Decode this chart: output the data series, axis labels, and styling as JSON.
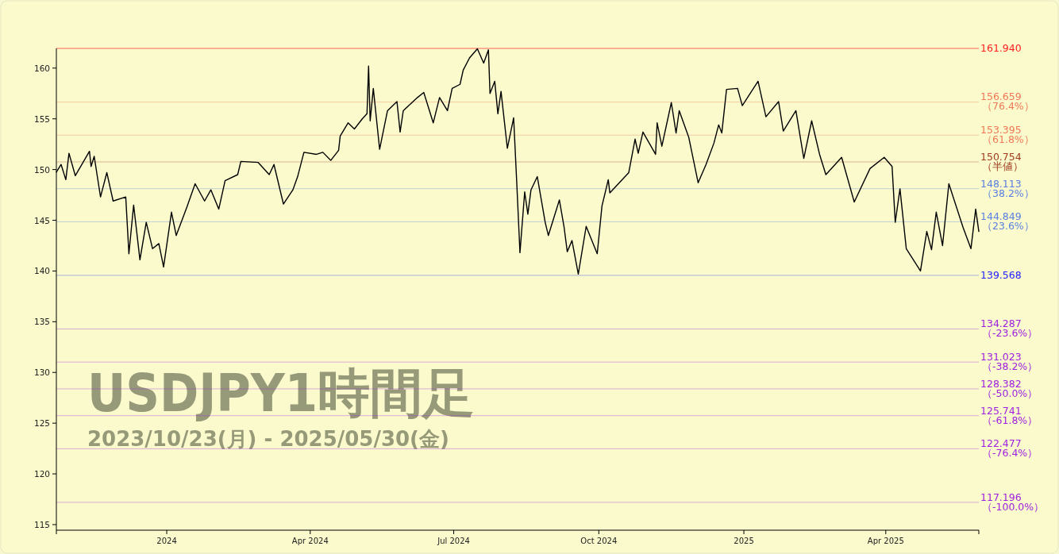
{
  "chart_data": {
    "type": "line",
    "title": "USDJPY1時間足",
    "subtitle": "2023/10/23(月) - 2025/05/30(金)",
    "x": [
      "2023-10-23",
      "2023-10-26",
      "2023-10-29",
      "2023-10-31",
      "2023-11-04",
      "2023-11-13",
      "2023-11-14",
      "2023-11-16",
      "2023-11-20",
      "2023-11-24",
      "2023-11-28",
      "2023-12-06",
      "2023-12-08",
      "2023-12-11",
      "2023-12-15",
      "2023-12-19",
      "2023-12-23",
      "2023-12-27",
      "2023-12-30",
      "2024-01-04",
      "2024-01-07",
      "2024-01-14",
      "2024-01-19",
      "2024-01-25",
      "2024-01-29",
      "2024-02-03",
      "2024-02-07",
      "2024-02-15",
      "2024-02-17",
      "2024-02-28",
      "2024-03-06",
      "2024-03-09",
      "2024-03-15",
      "2024-03-21",
      "2024-03-24",
      "2024-03-28",
      "2024-04-05",
      "2024-04-09",
      "2024-04-14",
      "2024-04-19",
      "2024-04-20",
      "2024-04-25",
      "2024-04-29",
      "2024-05-04",
      "2024-05-07",
      "2024-05-08",
      "2024-05-09",
      "2024-05-11",
      "2024-05-15",
      "2024-05-20",
      "2024-05-26",
      "2024-05-28",
      "2024-05-30",
      "2024-06-08",
      "2024-06-12",
      "2024-06-18",
      "2024-06-22",
      "2024-06-27",
      "2024-06-30",
      "2024-07-05",
      "2024-07-07",
      "2024-07-11",
      "2024-07-16",
      "2024-07-20",
      "2024-07-23",
      "2024-07-24",
      "2024-07-27",
      "2024-07-29",
      "2024-07-31",
      "2024-08-04",
      "2024-08-08",
      "2024-08-10",
      "2024-08-12",
      "2024-08-15",
      "2024-08-17",
      "2024-08-19",
      "2024-08-23",
      "2024-08-28",
      "2024-08-30",
      "2024-09-06",
      "2024-09-09",
      "2024-09-11",
      "2024-09-14",
      "2024-09-18",
      "2024-09-23",
      "2024-09-30",
      "2024-10-03",
      "2024-10-07",
      "2024-10-08",
      "2024-10-20",
      "2024-10-24",
      "2024-10-26",
      "2024-10-29",
      "2024-11-06",
      "2024-11-07",
      "2024-11-10",
      "2024-11-16",
      "2024-11-19",
      "2024-11-21",
      "2024-11-27",
      "2024-12-03",
      "2024-12-08",
      "2024-12-13",
      "2024-12-16",
      "2024-12-18",
      "2024-12-21",
      "2024-12-28",
      "2024-12-31",
      "2025-01-10",
      "2025-01-15",
      "2025-01-23",
      "2025-01-26",
      "2025-02-03",
      "2025-02-08",
      "2025-02-13",
      "2025-02-18",
      "2025-02-22",
      "2025-03-04",
      "2025-03-12",
      "2025-03-22",
      "2025-03-31",
      "2025-04-05",
      "2025-04-07",
      "2025-04-10",
      "2025-04-14",
      "2025-04-23",
      "2025-04-27",
      "2025-04-30",
      "2025-05-03",
      "2025-05-07",
      "2025-05-11",
      "2025-05-20",
      "2025-05-25",
      "2025-05-28",
      "2025-05-30"
    ],
    "series": [
      {
        "color": "#000000",
        "values": [
          149.75,
          150.5,
          149.0,
          151.6,
          149.4,
          151.8,
          150.3,
          151.3,
          147.3,
          149.7,
          146.9,
          147.3,
          141.7,
          146.5,
          141.1,
          144.8,
          142.2,
          142.7,
          140.4,
          145.8,
          143.5,
          146.4,
          148.6,
          146.9,
          148.0,
          146.1,
          148.9,
          149.5,
          150.8,
          150.7,
          149.5,
          150.5,
          146.6,
          148.0,
          149.3,
          151.7,
          151.5,
          151.7,
          150.9,
          151.9,
          153.3,
          154.6,
          154.0,
          155.0,
          155.5,
          160.2,
          154.8,
          158.0,
          152.0,
          155.8,
          156.7,
          153.7,
          155.8,
          157.1,
          157.6,
          154.6,
          157.1,
          155.8,
          158.0,
          158.4,
          159.8,
          161.0,
          161.9,
          160.5,
          161.8,
          157.5,
          158.7,
          155.5,
          157.7,
          152.1,
          155.1,
          148.6,
          141.8,
          147.8,
          145.6,
          148.0,
          149.3,
          144.8,
          143.5,
          147.0,
          144.3,
          141.9,
          143.0,
          139.7,
          144.4,
          141.7,
          146.4,
          149.0,
          147.7,
          149.7,
          153.0,
          151.6,
          153.7,
          151.5,
          154.6,
          152.3,
          156.6,
          153.6,
          155.8,
          153.2,
          148.7,
          150.5,
          152.6,
          154.4,
          153.6,
          157.9,
          158.0,
          156.3,
          158.7,
          155.2,
          156.7,
          153.8,
          155.8,
          151.1,
          154.8,
          151.5,
          149.5,
          151.2,
          146.8,
          150.1,
          151.2,
          150.3,
          144.8,
          148.1,
          142.2,
          140.0,
          143.9,
          142.1,
          145.8,
          142.5,
          148.6,
          144.3,
          142.2,
          146.1,
          143.9
        ]
      }
    ],
    "xlim": [
      "2023-10-23",
      "2025-05-30"
    ],
    "xticks": [
      {
        "value": "2024-01-01",
        "label": "2024"
      },
      {
        "value": "2024-04-01",
        "label": "Apr 2024"
      },
      {
        "value": "2024-07-01",
        "label": "Jul 2024"
      },
      {
        "value": "2024-10-01",
        "label": "Oct 2024"
      },
      {
        "value": "2025-01-01",
        "label": "2025"
      },
      {
        "value": "2025-04-01",
        "label": "Apr 2025"
      }
    ],
    "ylim": [
      114.45,
      161.94
    ],
    "yticks": [
      115,
      120,
      125,
      130,
      135,
      140,
      145,
      150,
      155,
      160
    ],
    "ref_lines": [
      {
        "axis": "y",
        "value": 161.94,
        "label": "161.940",
        "color": "#ff2020"
      },
      {
        "axis": "y",
        "value": 156.659,
        "label": "156.659 （76.4%）",
        "color": "#f07858"
      },
      {
        "axis": "y",
        "value": 153.395,
        "label": "153.395 （61.8%）",
        "color": "#f07858"
      },
      {
        "axis": "y",
        "value": 150.754,
        "label": "150.754 （半値）",
        "color": "#a03c20"
      },
      {
        "axis": "y",
        "value": 148.113,
        "label": "148.113 （38.2%）",
        "color": "#5a80e0"
      },
      {
        "axis": "y",
        "value": 144.849,
        "label": "144.849 （23.6%）",
        "color": "#5a80e0"
      },
      {
        "axis": "y",
        "value": 139.568,
        "label": "139.568",
        "color": "#2020ff"
      },
      {
        "axis": "y",
        "value": 134.287,
        "label": "134.287 （-23.6%）",
        "color": "#a020e0"
      },
      {
        "axis": "y",
        "value": 131.023,
        "label": "131.023 （-38.2%）",
        "color": "#a020e0"
      },
      {
        "axis": "y",
        "value": 128.382,
        "label": "128.382 （-50.0%）",
        "color": "#a020e0"
      },
      {
        "axis": "y",
        "value": 125.741,
        "label": "125.741 （-61.8%）",
        "color": "#a020e0"
      },
      {
        "axis": "y",
        "value": 122.477,
        "label": "122.477 （-76.4%）",
        "color": "#a020e0"
      },
      {
        "axis": "y",
        "value": 117.196,
        "label": "117.196 （-100.0%）",
        "color": "#a020e0"
      }
    ],
    "marker": "none",
    "line_style": "solid"
  }
}
